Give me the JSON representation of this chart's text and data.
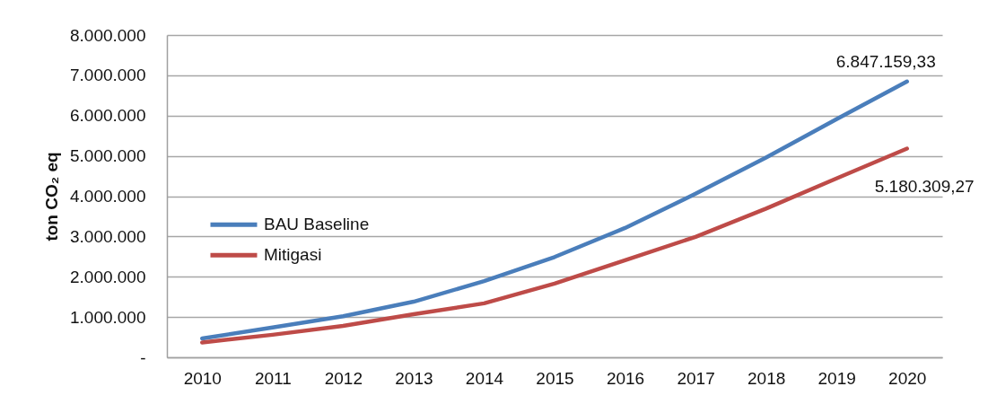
{
  "chart_data": {
    "type": "line",
    "ylabel": "ton CO₂ eq",
    "categories": [
      "2010",
      "2011",
      "2012",
      "2013",
      "2014",
      "2015",
      "2016",
      "2017",
      "2018",
      "2019",
      "2020"
    ],
    "series": [
      {
        "name": "BAU Baseline",
        "color": "#4a7ebb",
        "values": [
          470000,
          740000,
          1020000,
          1380000,
          1890000,
          2490000,
          3210000,
          4060000,
          4960000,
          5910000,
          6847159.33
        ],
        "value_labels": [
          null,
          null,
          null,
          null,
          null,
          null,
          null,
          null,
          null,
          null,
          "6.847.159,33"
        ]
      },
      {
        "name": "Mitigasi",
        "color": "#be4b48",
        "values": [
          370000,
          560000,
          780000,
          1070000,
          1340000,
          1830000,
          2410000,
          2990000,
          3690000,
          4440000,
          5180309.27
        ],
        "value_labels": [
          null,
          null,
          null,
          null,
          null,
          null,
          null,
          null,
          null,
          null,
          "5.180.309,27"
        ]
      }
    ],
    "ylim": [
      0,
      8000000
    ],
    "yticks": [
      {
        "value": 0,
        "label": "-"
      },
      {
        "value": 1000000,
        "label": "1.000.000"
      },
      {
        "value": 2000000,
        "label": "2.000.000"
      },
      {
        "value": 3000000,
        "label": "3.000.000"
      },
      {
        "value": 4000000,
        "label": "4.000.000"
      },
      {
        "value": 5000000,
        "label": "5.000.000"
      },
      {
        "value": 6000000,
        "label": "6.000.000"
      },
      {
        "value": 7000000,
        "label": "7.000.000"
      },
      {
        "value": 8000000,
        "label": "8.000.000"
      }
    ],
    "grid": "y",
    "legend": "left",
    "line_style": "solid"
  }
}
